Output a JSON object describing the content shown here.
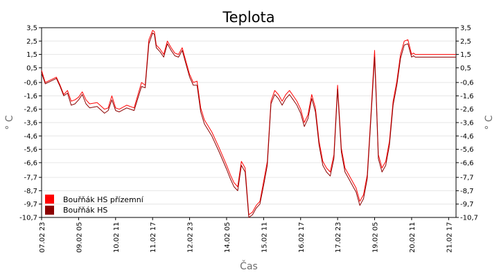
{
  "chart_data": {
    "type": "line",
    "title": "Teplota",
    "xlabel": "Čas",
    "ylabel": "° C",
    "ylabel_right": "° C",
    "ylim": [
      -10.7,
      3.5
    ],
    "y_ticks": [
      "3,5",
      "2,5",
      "1,5",
      "0,5",
      "-0,6",
      "-1,6",
      "-2,6",
      "-3,6",
      "-4,6",
      "-5,6",
      "-6,6",
      "-7,7",
      "-8,7",
      "-9,7",
      "-10,7"
    ],
    "y_tick_values": [
      3.5,
      2.5,
      1.5,
      0.5,
      -0.6,
      -1.6,
      -2.6,
      -3.6,
      -4.6,
      -5.6,
      -6.6,
      -7.7,
      -8.7,
      -9.7,
      -10.7
    ],
    "x_ticks": [
      "07.02 23",
      "09.02 05",
      "10.02 11",
      "11.02 17",
      "12.02 23",
      "14.02 05",
      "15.02 11",
      "16.02 17",
      "17.02 23",
      "19.02 05",
      "20.02 11",
      "21.02 17"
    ],
    "x_tick_positions": [
      0,
      1,
      2,
      3,
      4,
      5,
      6,
      7,
      8,
      9,
      10,
      11
    ],
    "x_range": [
      0,
      11.2
    ],
    "grid": true,
    "legend_position": "bottom-left",
    "series": [
      {
        "name": "Bouřňák HS přízemní",
        "color": "#ff0000",
        "x": [
          0,
          0.1,
          0.25,
          0.4,
          0.5,
          0.6,
          0.7,
          0.8,
          0.9,
          1.0,
          1.1,
          1.2,
          1.3,
          1.5,
          1.7,
          1.8,
          1.9,
          2.0,
          2.1,
          2.3,
          2.5,
          2.7,
          2.8,
          2.9,
          3.0,
          3.05,
          3.1,
          3.2,
          3.3,
          3.4,
          3.5,
          3.6,
          3.7,
          3.8,
          3.9,
          4.0,
          4.1,
          4.2,
          4.3,
          4.4,
          4.6,
          4.8,
          5.0,
          5.1,
          5.2,
          5.3,
          5.4,
          5.5,
          5.6,
          5.7,
          5.8,
          5.9,
          6.0,
          6.1,
          6.2,
          6.3,
          6.4,
          6.5,
          6.6,
          6.7,
          6.8,
          6.9,
          7.0,
          7.1,
          7.2,
          7.3,
          7.4,
          7.5,
          7.6,
          7.7,
          7.8,
          7.9,
          8.0,
          8.1,
          8.2,
          8.3,
          8.4,
          8.5,
          8.6,
          8.7,
          8.8,
          8.9,
          9.0,
          9.05,
          9.1,
          9.2,
          9.3,
          9.4,
          9.5,
          9.6,
          9.7,
          9.8,
          9.9,
          10.0,
          10.05,
          10.1,
          10.15,
          10.2,
          10.3,
          10.4,
          10.5,
          10.6,
          10.7,
          10.8,
          10.9,
          11.0,
          11.1,
          11.2
        ],
        "values": [
          0.3,
          -0.6,
          -0.4,
          -0.2,
          -0.8,
          -1.5,
          -1.2,
          -2.0,
          -1.9,
          -1.7,
          -1.3,
          -1.9,
          -2.2,
          -2.1,
          -2.6,
          -2.5,
          -1.6,
          -2.5,
          -2.6,
          -2.3,
          -2.5,
          -0.6,
          -0.8,
          2.6,
          3.3,
          3.2,
          2.2,
          1.9,
          1.5,
          2.5,
          2.0,
          1.6,
          1.5,
          2.0,
          1.0,
          0.0,
          -0.6,
          -0.5,
          -2.5,
          -3.4,
          -4.3,
          -5.5,
          -6.8,
          -7.5,
          -8.1,
          -8.4,
          -6.5,
          -7.0,
          -10.5,
          -10.3,
          -9.8,
          -9.5,
          -8.0,
          -6.5,
          -2.0,
          -1.2,
          -1.5,
          -2.0,
          -1.5,
          -1.2,
          -1.6,
          -2.0,
          -2.6,
          -3.6,
          -3.0,
          -1.5,
          -2.5,
          -5.0,
          -6.5,
          -7.0,
          -7.3,
          -6.0,
          -0.8,
          -5.5,
          -7.0,
          -7.5,
          -8.0,
          -8.5,
          -9.5,
          -9.0,
          -7.5,
          -3.0,
          1.8,
          -2.0,
          -6.0,
          -7.0,
          -6.5,
          -5.0,
          -2.0,
          -0.5,
          1.5,
          2.5,
          2.6,
          1.5,
          1.6,
          1.5,
          1.5,
          1.5,
          1.5,
          1.5,
          1.5,
          1.5,
          1.5,
          1.5,
          1.5,
          1.5,
          1.5,
          1.5
        ]
      },
      {
        "name": "Bouřňák HS",
        "color": "#8b0000",
        "x": [
          0,
          0.1,
          0.25,
          0.4,
          0.5,
          0.6,
          0.7,
          0.8,
          0.9,
          1.0,
          1.1,
          1.2,
          1.3,
          1.5,
          1.7,
          1.8,
          1.9,
          2.0,
          2.1,
          2.3,
          2.5,
          2.7,
          2.8,
          2.9,
          3.0,
          3.05,
          3.1,
          3.2,
          3.3,
          3.4,
          3.5,
          3.6,
          3.7,
          3.8,
          3.9,
          4.0,
          4.1,
          4.2,
          4.3,
          4.4,
          4.6,
          4.8,
          5.0,
          5.1,
          5.2,
          5.3,
          5.4,
          5.5,
          5.6,
          5.7,
          5.8,
          5.9,
          6.0,
          6.1,
          6.2,
          6.3,
          6.4,
          6.5,
          6.6,
          6.7,
          6.8,
          6.9,
          7.0,
          7.1,
          7.2,
          7.3,
          7.4,
          7.5,
          7.6,
          7.7,
          7.8,
          7.9,
          8.0,
          8.1,
          8.2,
          8.3,
          8.4,
          8.5,
          8.6,
          8.7,
          8.8,
          8.9,
          9.0,
          9.05,
          9.1,
          9.2,
          9.3,
          9.4,
          9.5,
          9.6,
          9.7,
          9.8,
          9.9,
          10.0,
          10.05,
          10.1,
          10.15,
          10.2,
          10.3,
          10.4,
          10.5,
          10.6,
          10.7,
          10.8,
          10.9,
          11.0,
          11.1,
          11.2
        ],
        "values": [
          0.1,
          -0.7,
          -0.5,
          -0.3,
          -0.9,
          -1.6,
          -1.4,
          -2.3,
          -2.2,
          -1.9,
          -1.5,
          -2.2,
          -2.5,
          -2.4,
          -2.9,
          -2.7,
          -1.9,
          -2.7,
          -2.8,
          -2.5,
          -2.7,
          -0.9,
          -1.0,
          2.3,
          3.1,
          3.0,
          2.0,
          1.7,
          1.3,
          2.3,
          1.8,
          1.4,
          1.3,
          1.8,
          0.8,
          -0.2,
          -0.8,
          -0.8,
          -2.8,
          -3.7,
          -4.6,
          -5.8,
          -7.1,
          -7.8,
          -8.4,
          -8.7,
          -6.8,
          -7.3,
          -10.7,
          -10.5,
          -10.0,
          -9.7,
          -8.3,
          -6.8,
          -2.2,
          -1.5,
          -1.8,
          -2.3,
          -1.8,
          -1.5,
          -1.9,
          -2.3,
          -2.9,
          -3.9,
          -3.3,
          -1.8,
          -2.8,
          -5.3,
          -6.8,
          -7.3,
          -7.6,
          -6.3,
          -1.1,
          -5.8,
          -7.3,
          -7.8,
          -8.3,
          -8.8,
          -9.8,
          -9.3,
          -7.8,
          -3.3,
          1.3,
          -2.3,
          -6.3,
          -7.3,
          -6.8,
          -5.3,
          -2.3,
          -0.8,
          1.2,
          2.2,
          2.3,
          1.3,
          1.4,
          1.3,
          1.3,
          1.3,
          1.3,
          1.3,
          1.3,
          1.3,
          1.3,
          1.3,
          1.3,
          1.3,
          1.3,
          1.3
        ]
      }
    ]
  }
}
